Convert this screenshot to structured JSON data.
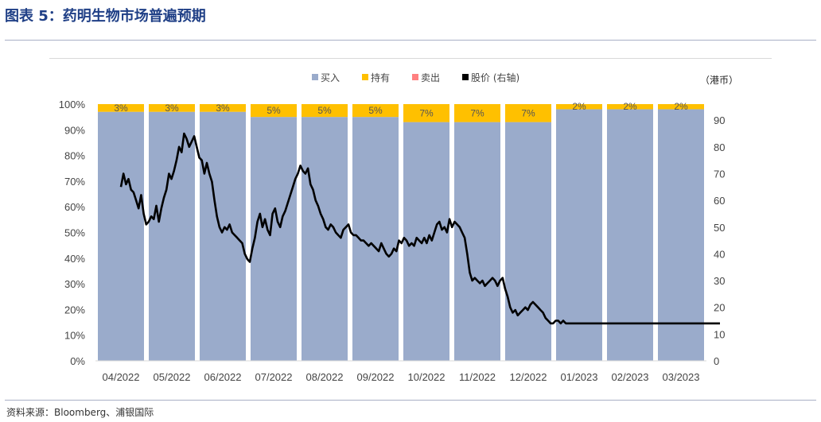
{
  "page": {
    "title": "图表 5：药明生物市场普遍预期",
    "source": "资料来源：Bloomberg、浦银国际"
  },
  "chart_data": {
    "type": "bar",
    "stacked": true,
    "categories": [
      "04/2022",
      "05/2022",
      "06/2022",
      "07/2022",
      "08/2022",
      "09/2022",
      "10/2022",
      "11/2022",
      "12/2022",
      "01/2023",
      "02/2023",
      "03/2023"
    ],
    "series": [
      {
        "name": "买入",
        "color": "#9aabcb",
        "values": [
          97,
          97,
          97,
          95,
          95,
          95,
          93,
          93,
          93,
          98,
          98,
          98
        ]
      },
      {
        "name": "持有",
        "color": "#ffc000",
        "values": [
          3,
          3,
          3,
          5,
          5,
          5,
          7,
          7,
          7,
          2,
          2,
          2
        ]
      },
      {
        "name": "卖出",
        "color": "#ff8080",
        "values": [
          0,
          0,
          0,
          0,
          0,
          0,
          0,
          0,
          0,
          0,
          0,
          0
        ]
      }
    ],
    "data_labels": [
      "3%",
      "3%",
      "3%",
      "5%",
      "5%",
      "5%",
      "7%",
      "7%",
      "7%",
      "2%",
      "2%",
      "2%"
    ],
    "y_left": {
      "min": 0,
      "max": 100,
      "ticks": [
        "0%",
        "10%",
        "20%",
        "30%",
        "40%",
        "50%",
        "60%",
        "70%",
        "80%",
        "90%",
        "100%"
      ]
    },
    "y_right": {
      "min": 0,
      "max": 96,
      "ticks": [
        "0",
        "10",
        "20",
        "30",
        "40",
        "50",
        "60",
        "70",
        "80",
        "90"
      ],
      "unit_label": "（港币）"
    },
    "line": {
      "name": "股价 (右轴)",
      "color": "#000000",
      "x": [
        0,
        0.05,
        0.1,
        0.15,
        0.2,
        0.25,
        0.3,
        0.35,
        0.4,
        0.45,
        0.5,
        0.55,
        0.6,
        0.65,
        0.7,
        0.75,
        0.8,
        0.85,
        0.9,
        0.95,
        1.0,
        1.05,
        1.1,
        1.15,
        1.2,
        1.25,
        1.3,
        1.35,
        1.4,
        1.45,
        1.5,
        1.55,
        1.6,
        1.65,
        1.7,
        1.75,
        1.8,
        1.85,
        1.9,
        1.95,
        2.0,
        2.05,
        2.1,
        2.15,
        2.2,
        2.25,
        2.3,
        2.35,
        2.4,
        2.45,
        2.5,
        2.55,
        2.6,
        2.65,
        2.7,
        2.75,
        2.8,
        2.85,
        2.9,
        2.95,
        3.0,
        3.05,
        3.1,
        3.15,
        3.2,
        3.25,
        3.3,
        3.35,
        3.4,
        3.45,
        3.5,
        3.55,
        3.6,
        3.65,
        3.7,
        3.75,
        3.8,
        3.85,
        3.9,
        3.95,
        4.0,
        4.05,
        4.1,
        4.15,
        4.2,
        4.25,
        4.3,
        4.35,
        4.4,
        4.45,
        4.5,
        4.55,
        4.6,
        4.65,
        4.7,
        4.75,
        4.8,
        4.85,
        4.9,
        4.95,
        5.0,
        5.05,
        5.1,
        5.15,
        5.2,
        5.25,
        5.3,
        5.35,
        5.4,
        5.45,
        5.5,
        5.55,
        5.6,
        5.65,
        5.7,
        5.75,
        5.8,
        5.85,
        5.9,
        5.95,
        6.0,
        6.05,
        6.1,
        6.15,
        6.2,
        6.25,
        6.3,
        6.35,
        6.4,
        6.45,
        6.5,
        6.55,
        6.6,
        6.65,
        6.7,
        6.75,
        6.8,
        6.85,
        6.9,
        6.95,
        7.0,
        7.05,
        7.1,
        7.15,
        7.2,
        7.25,
        7.3,
        7.35,
        7.4,
        7.45,
        7.5,
        7.55,
        7.6,
        7.65,
        7.7,
        7.75,
        7.8,
        7.85,
        7.9,
        7.95,
        8.0,
        8.05,
        8.1,
        8.15,
        8.2,
        8.25,
        8.3,
        8.35,
        8.4,
        8.45,
        8.5,
        8.55,
        8.6,
        8.65,
        8.7,
        8.75,
        8.8,
        8.85,
        8.9,
        8.95,
        9.0,
        9.05,
        9.1,
        9.15,
        9.2,
        9.25,
        9.3,
        9.35,
        9.4,
        9.45,
        9.5,
        9.55,
        9.6,
        9.65,
        9.7,
        9.75,
        9.8,
        9.85,
        9.9,
        9.95,
        10.0,
        10.05,
        10.1,
        10.15,
        10.2,
        10.25,
        10.3,
        10.35,
        10.4,
        10.45,
        10.5,
        10.55,
        10.6,
        10.65,
        10.7,
        10.75,
        10.8,
        10.85,
        10.9,
        10.95,
        11.0,
        11.05,
        11.1,
        11.15,
        11.2,
        11.25,
        11.3,
        11.35,
        11.4,
        11.45,
        11.5,
        11.55,
        11.6,
        11.65,
        11.7,
        11.75,
        11.8,
        11.85
      ],
      "y": [
        65,
        70,
        66,
        68,
        64,
        63,
        60,
        57,
        62,
        55,
        51,
        52,
        54,
        53,
        58,
        52,
        57,
        61,
        64,
        70,
        68,
        71,
        75,
        80,
        78,
        85,
        83,
        80,
        82,
        84,
        80,
        76,
        75,
        70,
        74,
        70,
        67,
        60,
        54,
        50,
        48,
        50,
        49,
        51,
        48,
        47,
        46,
        45,
        44,
        40,
        38,
        37,
        42,
        46,
        52,
        55,
        50,
        53,
        49,
        47,
        55,
        57,
        52,
        50,
        54,
        56,
        59,
        62,
        65,
        68,
        70,
        73,
        71,
        70,
        72,
        66,
        64,
        60,
        58,
        55,
        53,
        50,
        49,
        51,
        50,
        48,
        47,
        46,
        49,
        50,
        51,
        48,
        47,
        47,
        46,
        45,
        45,
        44,
        43,
        44,
        43,
        42,
        41,
        44,
        42,
        40,
        39,
        40,
        42,
        41,
        45,
        44,
        46,
        45,
        43,
        44,
        43,
        46,
        45,
        44,
        46,
        44,
        47,
        45,
        48,
        51,
        52,
        49,
        50,
        48,
        53,
        50,
        52,
        51,
        50,
        48,
        46,
        40,
        33,
        30,
        31,
        30,
        29,
        30,
        28,
        29,
        30,
        31,
        30,
        28,
        30,
        31,
        27,
        24,
        20,
        18,
        19,
        17,
        18,
        19,
        20,
        19,
        21,
        22,
        21,
        20,
        19,
        18,
        16,
        15,
        14,
        14,
        15,
        15,
        14,
        15,
        14,
        14,
        14,
        14,
        14,
        14,
        14,
        14,
        14,
        14,
        14,
        14,
        14,
        14,
        14,
        14,
        14,
        14,
        14,
        14,
        14,
        14,
        14,
        14,
        14,
        14,
        14,
        14,
        14,
        14,
        14,
        14,
        14,
        14,
        14,
        14,
        14,
        14,
        14,
        14,
        14,
        14,
        14,
        14,
        14,
        14,
        14,
        14,
        14,
        14,
        14,
        14,
        14,
        14,
        14,
        14,
        14,
        14,
        14,
        14,
        14,
        14
      ]
    },
    "legend": [
      "买入",
      "持有",
      "卖出",
      "股价 (右轴)"
    ],
    "legend_position": "top",
    "grid": false
  }
}
